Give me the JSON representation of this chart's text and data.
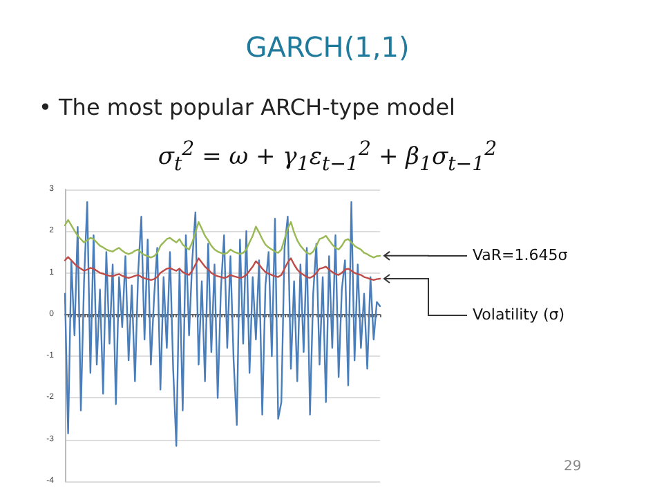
{
  "chart_data": {
    "type": "line",
    "title": "GARCH(1,1)",
    "subtitle": "• The most popular ARCH-type model",
    "annotations": [
      "σ$_{t}$$^{2}$ = ω + γ$_{1}$ε$_{t−1}$$^{2}$ + β$_{1}$σ$_{t−1}$$^{2}$",
      "29"
    ],
    "categories": [
      null,
      null,
      null,
      null,
      null,
      null,
      null,
      null,
      null,
      null,
      null,
      null,
      null,
      null,
      null,
      null,
      null,
      null,
      null,
      null,
      null,
      null,
      null,
      null,
      null,
      null,
      null,
      null,
      null,
      null,
      null,
      null,
      null,
      null,
      null,
      null,
      null,
      null,
      null,
      null,
      null,
      null,
      null,
      null,
      null,
      null,
      null,
      null,
      null,
      null,
      null,
      null,
      null,
      null,
      null,
      null,
      null,
      null,
      null,
      null,
      null,
      null,
      null,
      null,
      null,
      null,
      null,
      null,
      null,
      null,
      null,
      null,
      null,
      null,
      null,
      null,
      null,
      null,
      null,
      null,
      null,
      null,
      null,
      null,
      null,
      null,
      null,
      null,
      null,
      null,
      null,
      null,
      null,
      null,
      null,
      null,
      null,
      null,
      null,
      null
    ],
    "series": [
      {
        "color": "#4a7ebb",
        "values": [
          0.5,
          -2.85,
          1.3,
          -0.5,
          2.1,
          -2.3,
          0.8,
          2.7,
          -1.4,
          1.9,
          -1.2,
          0.6,
          -1.9,
          1.5,
          -0.7,
          1.2,
          -2.15,
          0.9,
          -0.3,
          1.4,
          -1.1,
          0.7,
          -1.6,
          1.0,
          2.35,
          -0.6,
          1.8,
          -1.2,
          0.4,
          1.6,
          -1.8,
          0.9,
          -0.8,
          1.5,
          -1.3,
          -3.15,
          1.1,
          -2.3,
          1.9,
          -0.5,
          1.3,
          2.45,
          -1.2,
          0.8,
          -1.6,
          1.7,
          -0.9,
          1.2,
          -2.0,
          0.6,
          1.9,
          -0.8,
          1.4,
          -1.1,
          -2.65,
          1.8,
          -0.7,
          2.0,
          -1.4,
          0.9,
          -0.6,
          1.3,
          -2.4,
          0.7,
          1.5,
          -1.0,
          2.3,
          -2.5,
          -2.1,
          1.6,
          2.35,
          -1.3,
          0.8,
          -1.6,
          1.2,
          -0.9,
          1.6,
          -2.4,
          0.5,
          1.7,
          -1.2,
          0.9,
          -2.1,
          1.4,
          -0.8,
          1.9,
          -1.5,
          0.6,
          1.3,
          -1.7,
          2.7,
          -1.1,
          1.2,
          -0.8,
          0.5,
          -1.3,
          0.9,
          -0.6,
          0.3,
          0.2
        ]
      },
      {
        "name": "VaR=1.645σ",
        "color": "#98b954",
        "values": [
          2.14,
          2.27,
          2.14,
          2.01,
          1.89,
          1.81,
          1.73,
          1.78,
          1.84,
          1.81,
          1.73,
          1.65,
          1.61,
          1.56,
          1.53,
          1.51,
          1.56,
          1.6,
          1.53,
          1.48,
          1.45,
          1.48,
          1.53,
          1.56,
          1.48,
          1.43,
          1.4,
          1.37,
          1.4,
          1.48,
          1.65,
          1.73,
          1.81,
          1.84,
          1.78,
          1.73,
          1.81,
          1.68,
          1.61,
          1.56,
          1.73,
          1.97,
          2.22,
          2.06,
          1.89,
          1.78,
          1.65,
          1.56,
          1.51,
          1.48,
          1.45,
          1.48,
          1.56,
          1.51,
          1.48,
          1.45,
          1.48,
          1.56,
          1.73,
          1.89,
          2.11,
          1.97,
          1.81,
          1.68,
          1.61,
          1.56,
          1.51,
          1.48,
          1.56,
          1.81,
          2.06,
          2.22,
          1.97,
          1.78,
          1.65,
          1.56,
          1.48,
          1.45,
          1.51,
          1.65,
          1.81,
          1.84,
          1.89,
          1.78,
          1.68,
          1.6,
          1.56,
          1.65,
          1.78,
          1.81,
          1.73,
          1.65,
          1.6,
          1.56,
          1.48,
          1.45,
          1.4,
          1.37,
          1.4,
          1.41
        ]
      },
      {
        "name": "Volatility (σ)",
        "color": "#be4b48",
        "values": [
          1.3,
          1.38,
          1.3,
          1.22,
          1.15,
          1.1,
          1.05,
          1.08,
          1.12,
          1.1,
          1.05,
          1.0,
          0.98,
          0.95,
          0.93,
          0.92,
          0.95,
          0.97,
          0.93,
          0.9,
          0.88,
          0.9,
          0.93,
          0.95,
          0.9,
          0.87,
          0.85,
          0.83,
          0.85,
          0.9,
          1.0,
          1.05,
          1.1,
          1.12,
          1.08,
          1.05,
          1.1,
          1.02,
          0.98,
          0.95,
          1.05,
          1.2,
          1.35,
          1.25,
          1.15,
          1.08,
          1.0,
          0.95,
          0.92,
          0.9,
          0.88,
          0.9,
          0.95,
          0.92,
          0.9,
          0.88,
          0.9,
          0.95,
          1.05,
          1.15,
          1.28,
          1.2,
          1.1,
          1.02,
          0.98,
          0.95,
          0.92,
          0.9,
          0.95,
          1.1,
          1.25,
          1.35,
          1.2,
          1.08,
          1.0,
          0.95,
          0.9,
          0.88,
          0.92,
          1.0,
          1.1,
          1.12,
          1.15,
          1.08,
          1.02,
          0.97,
          0.95,
          1.0,
          1.08,
          1.1,
          1.05,
          1.0,
          0.97,
          0.95,
          0.9,
          0.88,
          0.85,
          0.83,
          0.85,
          0.86
        ]
      }
    ],
    "ylim": [
      -4,
      3
    ],
    "yticks": [
      -4,
      -3,
      -2,
      -1,
      0,
      1,
      2,
      3
    ],
    "grid": "y",
    "legend": false,
    "line_style": "solid",
    "tick_labels": "y"
  }
}
